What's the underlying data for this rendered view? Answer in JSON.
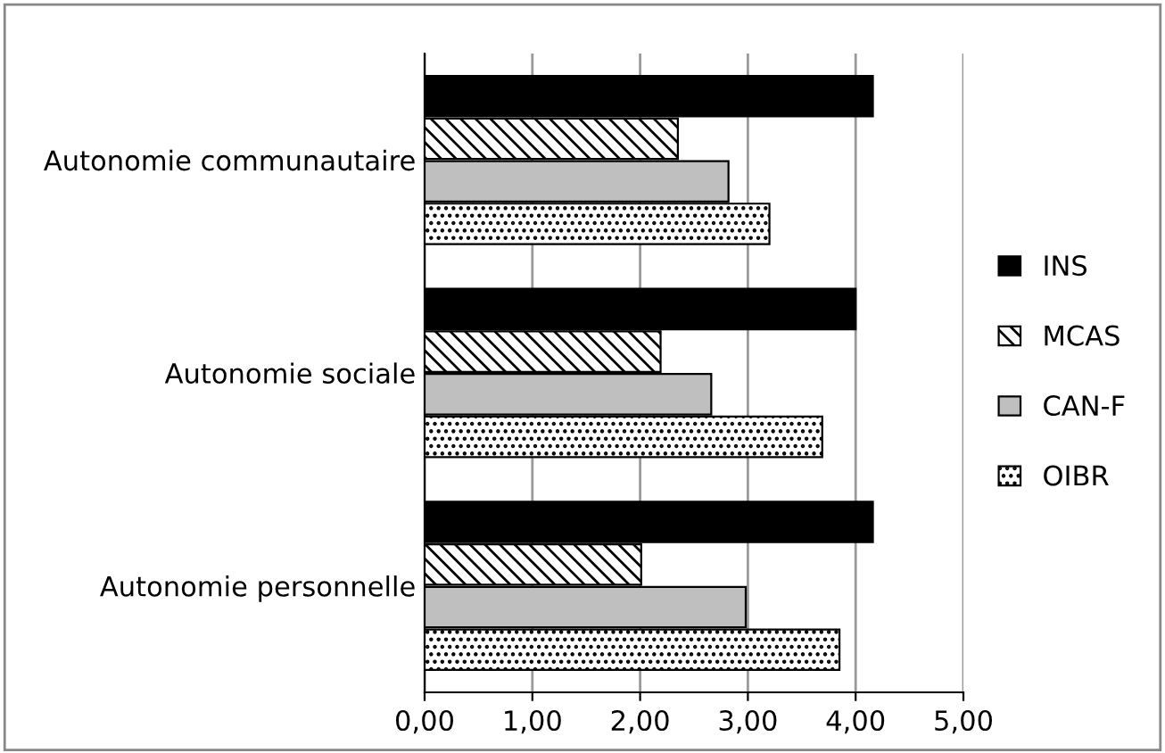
{
  "chart_data": {
    "type": "bar",
    "orientation": "horizontal",
    "categories": [
      "Autonomie communautaire",
      "Autonomie sociale",
      "Autonomie personnelle"
    ],
    "series": [
      {
        "name": "INS",
        "color": "#000000",
        "values": [
          4.16,
          4.0,
          4.16
        ]
      },
      {
        "name": "MCAS",
        "color": "#000000",
        "values": [
          2.35,
          2.19,
          2.01
        ]
      },
      {
        "name": "CAN-F",
        "color": "#bfbfbf",
        "values": [
          2.82,
          2.66,
          2.98
        ]
      },
      {
        "name": "OIBR",
        "color": "#000000",
        "values": [
          3.2,
          3.69,
          3.85
        ]
      }
    ],
    "xlim": [
      0,
      5
    ],
    "xticks": [
      {
        "value": 0,
        "label": "0,00"
      },
      {
        "value": 1,
        "label": "1,00"
      },
      {
        "value": 2,
        "label": "2,00"
      },
      {
        "value": 3,
        "label": "3,00"
      },
      {
        "value": 4,
        "label": "4,00"
      },
      {
        "value": 5,
        "label": "5,00"
      }
    ],
    "grid": "x",
    "legend": "right"
  }
}
